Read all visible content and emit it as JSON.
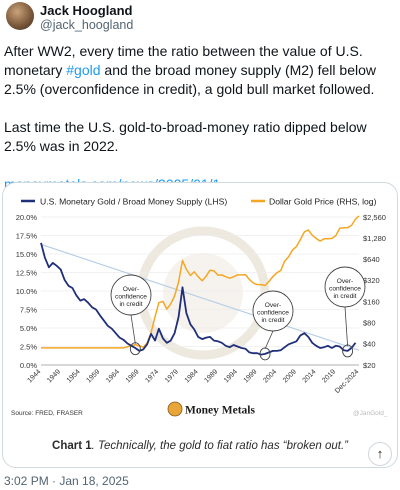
{
  "author": {
    "name": "Jack Hoogland",
    "handle": "@jack_hoogland"
  },
  "tweet": {
    "p1_before": "After WW2, every time the ratio between the value of U.S. monetary ",
    "p1_hashtag": "#gold",
    "p1_after": " and the broad money supply (M2) fell below 2.5% (overconfidence in credit), a gold bull market followed.",
    "p2": "Last time the U.S. gold-to-broad-money ratio dipped below 2.5% was in 2022.",
    "link": "moneymetals.com/news/2025/01/1..."
  },
  "media": {
    "source": "Source: FRED, FRASER",
    "brand": "MONEY METALS",
    "brand_display": "Money Metals",
    "watermark_handle": "@JanGold_",
    "caption_bold": "Chart 1",
    "caption_rest": ". Technically, the gold to fiat ratio has “broken out.”",
    "scroll_top_glyph": "↑",
    "annotation_lines": [
      "Over-",
      "confidence",
      "in credit"
    ]
  },
  "timestamp": "3:02 PM · Jan 18, 2025",
  "chart_data": {
    "type": "line",
    "legend_position": "top",
    "grid": true,
    "series": [
      {
        "name": "U.S. Monetary Gold / Broad Money Supply (LHS)",
        "color": "#1f2f7a",
        "axis": "left",
        "points": [
          [
            1944,
            16.5
          ],
          [
            1945,
            14.5
          ],
          [
            1946,
            13.2
          ],
          [
            1947,
            13.8
          ],
          [
            1948,
            13.4
          ],
          [
            1949,
            12.9
          ],
          [
            1950,
            11.5
          ],
          [
            1951,
            10.7
          ],
          [
            1952,
            10.4
          ],
          [
            1953,
            9.4
          ],
          [
            1954,
            8.7
          ],
          [
            1955,
            8.9
          ],
          [
            1956,
            8.4
          ],
          [
            1957,
            7.8
          ],
          [
            1958,
            7.5
          ],
          [
            1959,
            6.7
          ],
          [
            1960,
            6.0
          ],
          [
            1961,
            5.3
          ],
          [
            1962,
            4.9
          ],
          [
            1963,
            4.3
          ],
          [
            1964,
            3.7
          ],
          [
            1965,
            3.4
          ],
          [
            1966,
            2.9
          ],
          [
            1967,
            2.6
          ],
          [
            1968,
            2.3
          ],
          [
            1969,
            1.9
          ],
          [
            1970,
            2.1
          ],
          [
            1971,
            2.8
          ],
          [
            1972,
            4.2
          ],
          [
            1973,
            3.3
          ],
          [
            1974,
            4.9
          ],
          [
            1975,
            3.6
          ],
          [
            1976,
            3.0
          ],
          [
            1977,
            3.3
          ],
          [
            1978,
            4.3
          ],
          [
            1979,
            6.5
          ],
          [
            1980,
            10.5
          ],
          [
            1981,
            7.0
          ],
          [
            1982,
            5.5
          ],
          [
            1983,
            4.8
          ],
          [
            1984,
            3.8
          ],
          [
            1985,
            3.5
          ],
          [
            1986,
            3.7
          ],
          [
            1987,
            3.8
          ],
          [
            1988,
            3.3
          ],
          [
            1989,
            3.2
          ],
          [
            1990,
            3.0
          ],
          [
            1991,
            2.6
          ],
          [
            1992,
            2.4
          ],
          [
            1993,
            2.7
          ],
          [
            1994,
            2.5
          ],
          [
            1995,
            2.3
          ],
          [
            1996,
            2.2
          ],
          [
            1997,
            1.7
          ],
          [
            1998,
            1.6
          ],
          [
            1999,
            1.6
          ],
          [
            2000,
            1.4
          ],
          [
            2001,
            1.5
          ],
          [
            2002,
            1.7
          ],
          [
            2003,
            1.9
          ],
          [
            2004,
            1.9
          ],
          [
            2005,
            2.0
          ],
          [
            2006,
            2.4
          ],
          [
            2007,
            2.8
          ],
          [
            2008,
            3.0
          ],
          [
            2009,
            3.2
          ],
          [
            2010,
            4.0
          ],
          [
            2011,
            4.3
          ],
          [
            2012,
            3.8
          ],
          [
            2013,
            3.0
          ],
          [
            2014,
            2.6
          ],
          [
            2015,
            2.3
          ],
          [
            2016,
            2.4
          ],
          [
            2017,
            2.6
          ],
          [
            2018,
            2.3
          ],
          [
            2019,
            2.6
          ],
          [
            2020,
            2.5
          ],
          [
            2021,
            2.0
          ],
          [
            2022,
            1.9
          ],
          [
            2023,
            2.3
          ],
          [
            2024,
            3.0
          ]
        ]
      },
      {
        "name": "Dollar Gold Price (RHS, log)",
        "color": "#f5a623",
        "axis": "right",
        "points": [
          [
            1944,
            35
          ],
          [
            1950,
            35
          ],
          [
            1955,
            35
          ],
          [
            1960,
            35
          ],
          [
            1965,
            35
          ],
          [
            1968,
            39
          ],
          [
            1970,
            36
          ],
          [
            1971,
            41
          ],
          [
            1972,
            58
          ],
          [
            1973,
            97
          ],
          [
            1974,
            154
          ],
          [
            1975,
            161
          ],
          [
            1976,
            125
          ],
          [
            1977,
            148
          ],
          [
            1978,
            193
          ],
          [
            1979,
            306
          ],
          [
            1980,
            615
          ],
          [
            1981,
            460
          ],
          [
            1982,
            376
          ],
          [
            1983,
            424
          ],
          [
            1984,
            361
          ],
          [
            1985,
            317
          ],
          [
            1986,
            368
          ],
          [
            1987,
            447
          ],
          [
            1988,
            437
          ],
          [
            1989,
            381
          ],
          [
            1990,
            383
          ],
          [
            1991,
            362
          ],
          [
            1992,
            344
          ],
          [
            1993,
            360
          ],
          [
            1994,
            384
          ],
          [
            1995,
            384
          ],
          [
            1996,
            388
          ],
          [
            1997,
            331
          ],
          [
            1998,
            294
          ],
          [
            1999,
            279
          ],
          [
            2000,
            279
          ],
          [
            2001,
            271
          ],
          [
            2002,
            310
          ],
          [
            2003,
            363
          ],
          [
            2004,
            409
          ],
          [
            2005,
            445
          ],
          [
            2006,
            604
          ],
          [
            2007,
            696
          ],
          [
            2008,
            872
          ],
          [
            2009,
            973
          ],
          [
            2010,
            1225
          ],
          [
            2011,
            1572
          ],
          [
            2012,
            1669
          ],
          [
            2013,
            1411
          ],
          [
            2014,
            1266
          ],
          [
            2015,
            1160
          ],
          [
            2016,
            1251
          ],
          [
            2017,
            1257
          ],
          [
            2018,
            1268
          ],
          [
            2019,
            1393
          ],
          [
            2020,
            1770
          ],
          [
            2021,
            1800
          ],
          [
            2022,
            1800
          ],
          [
            2023,
            1943
          ],
          [
            2024,
            2390
          ],
          [
            2024.9,
            2650
          ]
        ]
      }
    ],
    "reference_line": {
      "name": "trend",
      "color": "#b8cfe6",
      "points": [
        [
          1944,
          16.3
        ],
        [
          2024.9,
          2.0
        ]
      ]
    },
    "annotations": [
      {
        "x": 1968,
        "y": 2.2,
        "label": "Over-confidence in credit"
      },
      {
        "x": 2001,
        "y": 1.5,
        "label": "Over-confidence in credit"
      },
      {
        "x": 2022,
        "y": 1.9,
        "label": "Over-confidence in credit"
      }
    ],
    "x_ticks": [
      "1944",
      "1949",
      "1954",
      "1959",
      "1964",
      "1969",
      "1974",
      "1979",
      "1984",
      "1989",
      "1994",
      "1999",
      "2004",
      "2009",
      "2014",
      "2019",
      "Dec-2024"
    ],
    "y_left": {
      "ticks": [
        "0.0%",
        "2.5%",
        "5.0%",
        "7.5%",
        "10.0%",
        "12.5%",
        "15.0%",
        "17.5%",
        "20.0%"
      ],
      "lim": [
        0,
        20
      ]
    },
    "y_right": {
      "scale": "log",
      "ticks": [
        "$20",
        "$40",
        "$80",
        "$160",
        "$320",
        "$640",
        "$1,280",
        "$2,560"
      ],
      "lim": [
        20,
        2560
      ]
    },
    "xlim": [
      1944,
      2024.9
    ]
  }
}
